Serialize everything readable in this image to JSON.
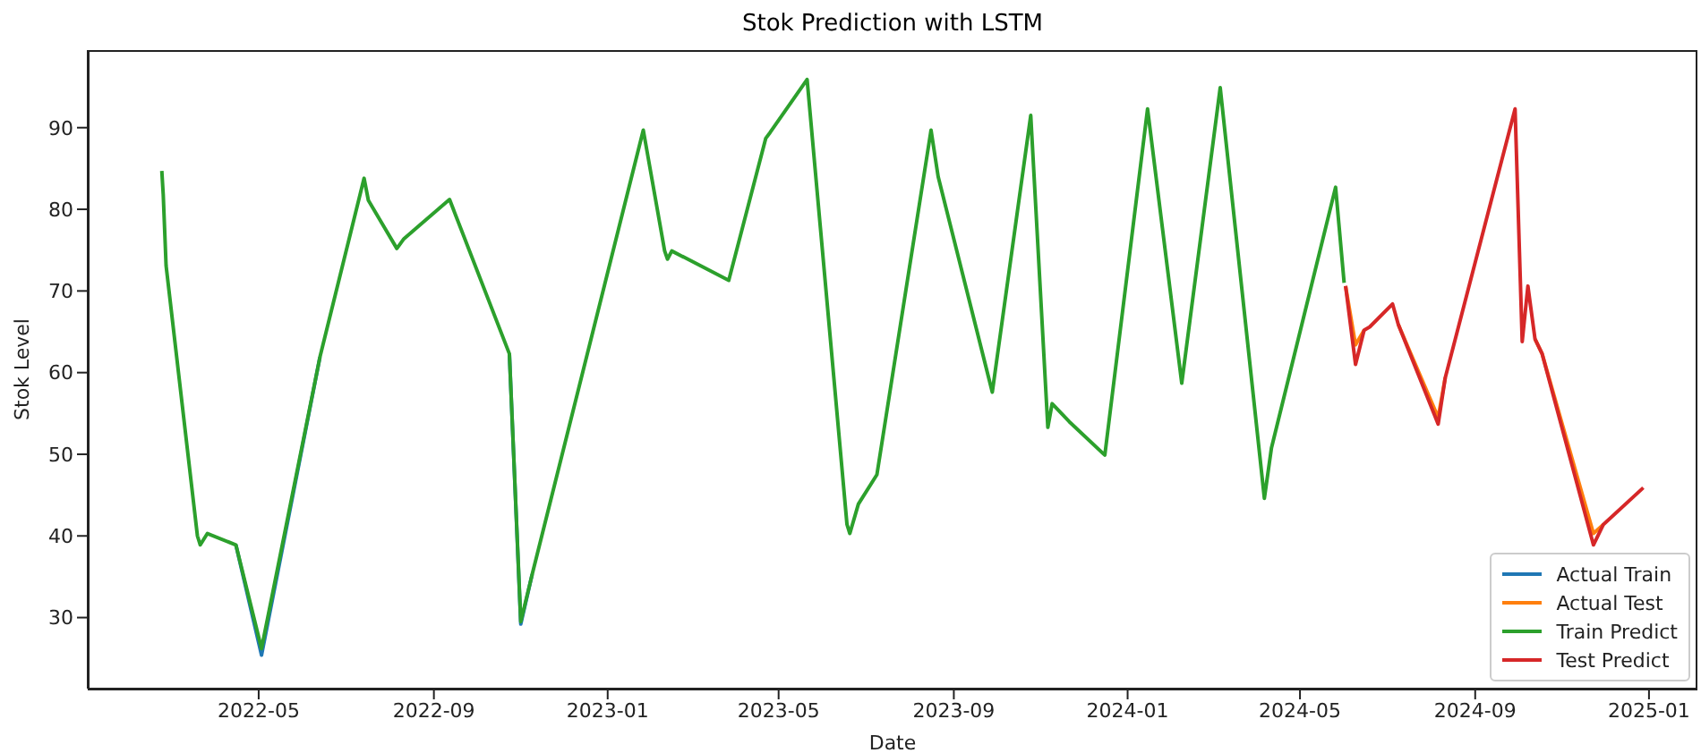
{
  "chart_data": {
    "type": "line",
    "title": "Stok Prediction with LSTM",
    "xlabel": "Date",
    "ylabel": "Stok Level",
    "xlim": [
      "2022-01-01",
      "2025-02-04"
    ],
    "ylim": [
      21.3,
      99.5
    ],
    "xticks": [
      "2022-05",
      "2022-09",
      "2023-01",
      "2023-05",
      "2023-09",
      "2024-01",
      "2024-05",
      "2024-09",
      "2025-01"
    ],
    "yticks": [
      30,
      40,
      50,
      60,
      70,
      80,
      90
    ],
    "grid": false,
    "legend": "bottom right",
    "marker": "none",
    "line_style": "solid",
    "series": [
      {
        "name": "Actual Train",
        "color": "#1f77b4",
        "x": [
          "2022-04-15",
          "2022-05-03",
          "2022-06-13",
          "2022-07-14",
          "2022-10-24",
          "2022-11-01",
          "2022-11-09"
        ],
        "values": [
          38.9,
          25.4,
          61.9,
          null,
          62.3,
          29.2,
          35.3
        ]
      },
      {
        "name": "Actual Test",
        "color": "#ff7f0e",
        "x": [
          "2024-06-02",
          "2024-06-09",
          "2024-06-15",
          "2024-06-19",
          "2024-07-05",
          "2024-07-09",
          "2024-08-06",
          "2024-08-11",
          "2024-09-29",
          "2024-10-04",
          "2024-10-08",
          "2024-10-13",
          "2024-10-18",
          "2024-11-23",
          "2024-11-30"
        ],
        "values": [
          70.6,
          63.4,
          65.2,
          null,
          null,
          65.9,
          54.5,
          59.4,
          null,
          null,
          null,
          64.1,
          62.3,
          40.3,
          41.4
        ]
      },
      {
        "name": "Train Predict",
        "color": "#2ca02c",
        "x": [
          "2022-02-22",
          "2022-02-23",
          "2022-02-25",
          "2022-03-19",
          "2022-03-21",
          "2022-03-26",
          "2022-04-15",
          "2022-05-03",
          "2022-06-13",
          "2022-07-14",
          "2022-07-17",
          "2022-08-06",
          "2022-08-11",
          "2022-09-12",
          "2022-10-24",
          "2022-11-01",
          "2022-11-09",
          "2023-01-26",
          "2023-02-10",
          "2023-02-12",
          "2023-02-15",
          "2023-03-27",
          "2023-04-22",
          "2023-04-25",
          "2023-05-21",
          "2023-06-18",
          "2023-06-20",
          "2023-06-26",
          "2023-07-09",
          "2023-08-16",
          "2023-08-21",
          "2023-09-28",
          "2023-10-25",
          "2023-11-06",
          "2023-11-09",
          "2023-11-21",
          "2023-12-16",
          "2024-01-15",
          "2024-02-08",
          "2024-03-06",
          "2024-04-06",
          "2024-04-11",
          "2024-05-26",
          "2024-06-01"
        ],
        "values": [
          84.7,
          81.8,
          73.1,
          40.0,
          38.9,
          40.3,
          38.9,
          26.2,
          61.9,
          83.8,
          81.1,
          75.2,
          76.4,
          81.2,
          62.3,
          29.5,
          35.3,
          89.7,
          74.9,
          73.9,
          74.9,
          71.3,
          88.7,
          89.4,
          95.9,
          41.4,
          40.3,
          43.9,
          47.5,
          89.7,
          84.0,
          57.6,
          91.5,
          53.3,
          56.2,
          54.0,
          49.9,
          92.3,
          58.7,
          94.9,
          44.6,
          50.8,
          82.7,
          71.0
        ]
      },
      {
        "name": "Test Predict",
        "color": "#d62728",
        "x": [
          "2024-06-02",
          "2024-06-09",
          "2024-06-15",
          "2024-06-19",
          "2024-07-05",
          "2024-07-09",
          "2024-08-06",
          "2024-08-11",
          "2024-09-29",
          "2024-10-04",
          "2024-10-08",
          "2024-10-13",
          "2024-10-18",
          "2024-11-23",
          "2024-11-30",
          "2024-12-28"
        ],
        "values": [
          70.6,
          61.0,
          65.2,
          65.6,
          68.4,
          65.9,
          53.7,
          59.4,
          92.3,
          63.8,
          70.6,
          64.1,
          62.3,
          38.9,
          41.4,
          45.9
        ]
      }
    ]
  }
}
